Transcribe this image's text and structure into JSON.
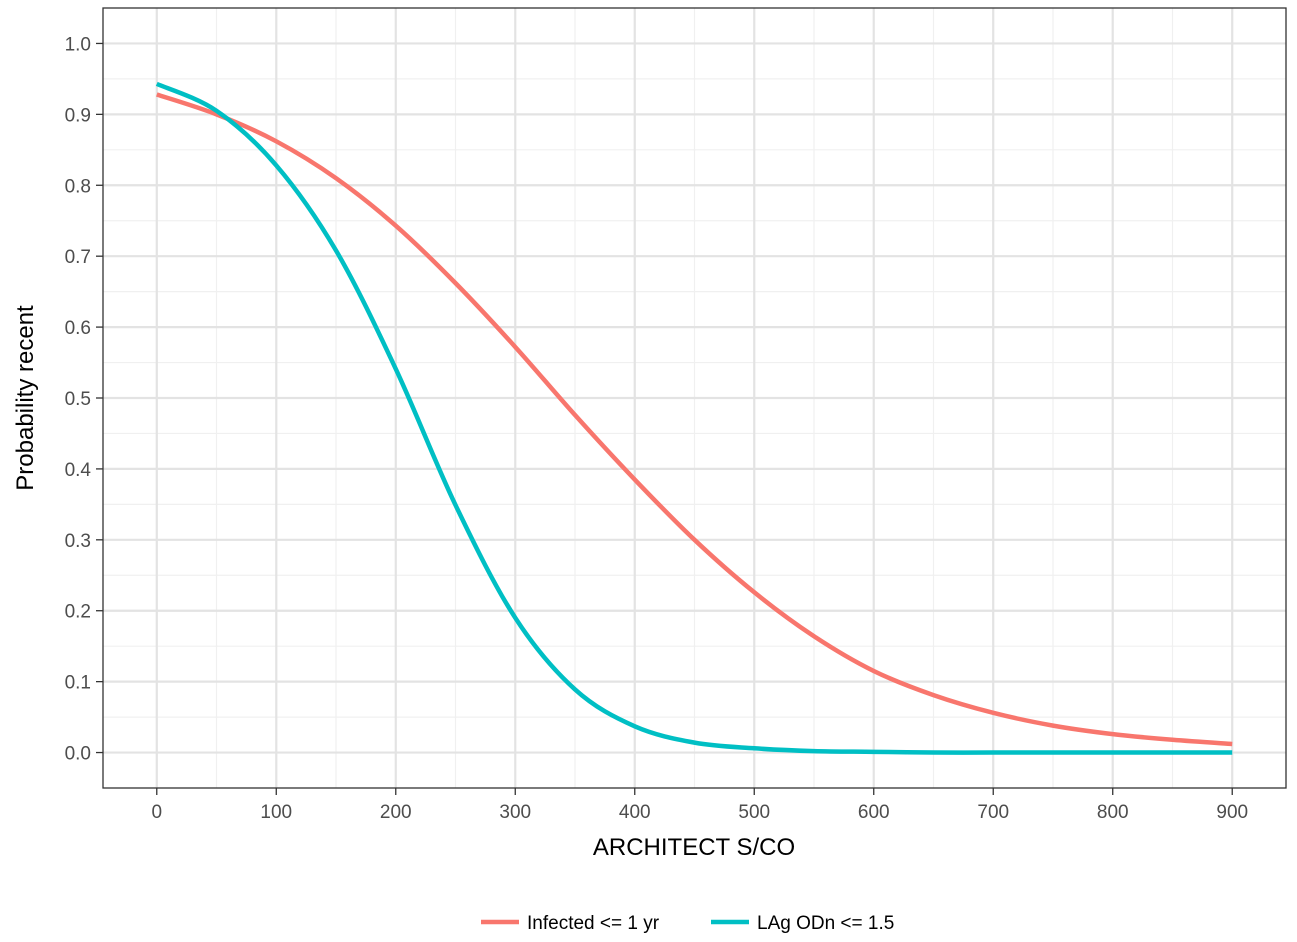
{
  "chart_data": {
    "type": "line",
    "title": "",
    "xlabel": "ARCHITECT S/CO",
    "ylabel": "Probability recent",
    "xlim": [
      -45,
      945
    ],
    "ylim": [
      -0.05,
      1.05
    ],
    "xticks": [
      0,
      100,
      200,
      300,
      400,
      500,
      600,
      700,
      800,
      900
    ],
    "xtick_labels": [
      "0",
      "100",
      "200",
      "300",
      "400",
      "500",
      "600",
      "700",
      "800",
      "900"
    ],
    "yticks": [
      0.0,
      0.1,
      0.2,
      0.3,
      0.4,
      0.5,
      0.6,
      0.7,
      0.8,
      0.9,
      1.0
    ],
    "ytick_labels": [
      "0.0",
      "0.1",
      "0.2",
      "0.3",
      "0.4",
      "0.5",
      "0.6",
      "0.7",
      "0.8",
      "0.9",
      "1.0"
    ],
    "grid": true,
    "legend_position": "bottom",
    "x": [
      0,
      50,
      100,
      150,
      200,
      250,
      300,
      350,
      400,
      450,
      500,
      550,
      600,
      650,
      700,
      750,
      800,
      850,
      900
    ],
    "series": [
      {
        "name": "Infected <= 1 yr",
        "color": "#F8766D",
        "values": [
          0.928,
          0.9,
          0.862,
          0.81,
          0.743,
          0.662,
          0.572,
          0.476,
          0.385,
          0.3,
          0.226,
          0.164,
          0.115,
          0.081,
          0.056,
          0.038,
          0.026,
          0.018,
          0.012
        ]
      },
      {
        "name": "LAg ODn <= 1.5",
        "color": "#00BFC4",
        "values": [
          0.943,
          0.905,
          0.828,
          0.708,
          0.541,
          0.349,
          0.19,
          0.089,
          0.037,
          0.014,
          0.006,
          0.002,
          0.001,
          0.0,
          0.0,
          0.0,
          0.0,
          0.0,
          0.0
        ]
      }
    ]
  }
}
